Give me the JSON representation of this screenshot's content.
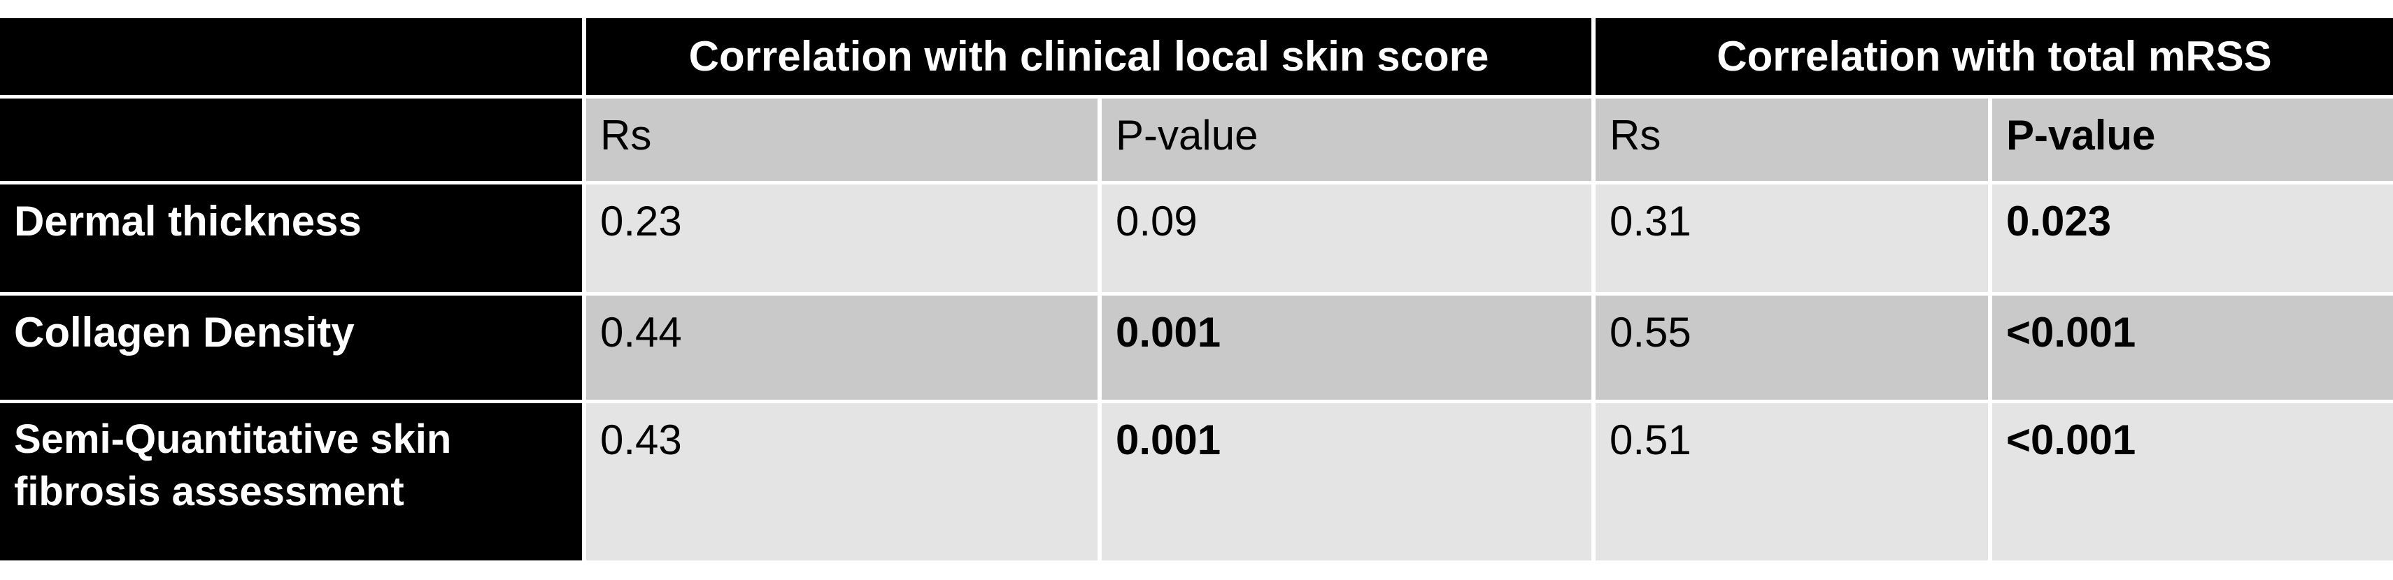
{
  "table": {
    "header": [
      "Correlation with clinical local skin score",
      "Correlation with total mRSS"
    ],
    "subheader": [
      "Rs",
      "P-value",
      "Rs",
      "P-value"
    ],
    "rows": [
      [
        "Dermal thickness",
        "0.23",
        "0.09",
        "0.31",
        "0.023"
      ],
      [
        "Collagen Density",
        "0.44",
        "0.001",
        "0.55",
        "<0.001"
      ],
      [
        "Semi-Quantitative skin fibrosis assessment",
        "0.43",
        "0.001",
        "0.51",
        "<0.001"
      ]
    ]
  }
}
